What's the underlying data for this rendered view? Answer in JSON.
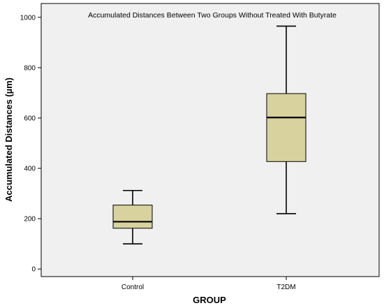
{
  "chart_data": {
    "type": "boxplot",
    "title": "Accumulated Distances Between Two Groups Without Treated With Butyrate",
    "xlabel": "GROUP",
    "ylabel": "Accumulated Distances (µm)",
    "ylim": [
      -30,
      1055
    ],
    "yticks": [
      0,
      200,
      400,
      600,
      800,
      1000
    ],
    "categories": [
      "Control",
      "T2DM"
    ],
    "boxes": [
      {
        "category": "Control",
        "min": 100,
        "q1": 162,
        "median": 188,
        "q3": 254,
        "max": 312
      },
      {
        "category": "T2DM",
        "min": 220,
        "q1": 427,
        "median": 602,
        "q3": 697,
        "max": 965
      }
    ],
    "grid": false,
    "legend": "none",
    "colors": {
      "box_fill": "#d8d29e",
      "plot_background": "#f0f0f0",
      "stroke": "#000000"
    }
  }
}
